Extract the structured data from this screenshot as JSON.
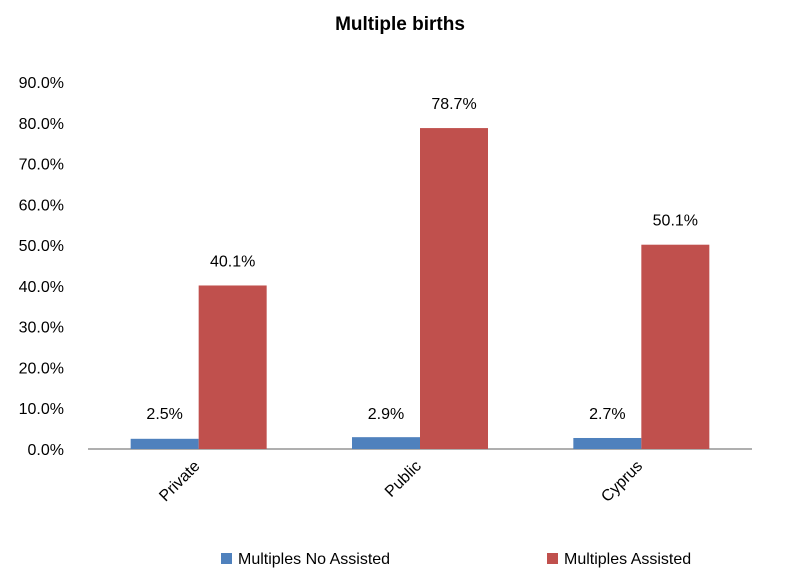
{
  "chart_data": {
    "type": "bar",
    "title": "Multiple births",
    "xlabel": "",
    "ylabel": "",
    "categories": [
      "Private",
      "Public",
      "Cyprus"
    ],
    "series": [
      {
        "name": "Multiples No Assisted",
        "color": "#4f81bd",
        "values": [
          2.5,
          2.9,
          2.7
        ],
        "labels": [
          "2.5%",
          "2.9%",
          "2.7%"
        ]
      },
      {
        "name": "Multiples Assisted",
        "color": "#c0504d",
        "values": [
          40.1,
          78.7,
          50.1
        ],
        "labels": [
          "40.1%",
          "78.7%",
          "50.1%"
        ]
      }
    ],
    "ylim": [
      0,
      90
    ],
    "yticks": [
      0,
      10,
      20,
      30,
      40,
      50,
      60,
      70,
      80,
      90
    ],
    "ytick_labels": [
      "0.0%",
      "10.0%",
      "20.0%",
      "30.0%",
      "40.0%",
      "50.0%",
      "60.0%",
      "70.0%",
      "80.0%",
      "90.0%"
    ],
    "grid": false,
    "legend_position": "bottom"
  }
}
